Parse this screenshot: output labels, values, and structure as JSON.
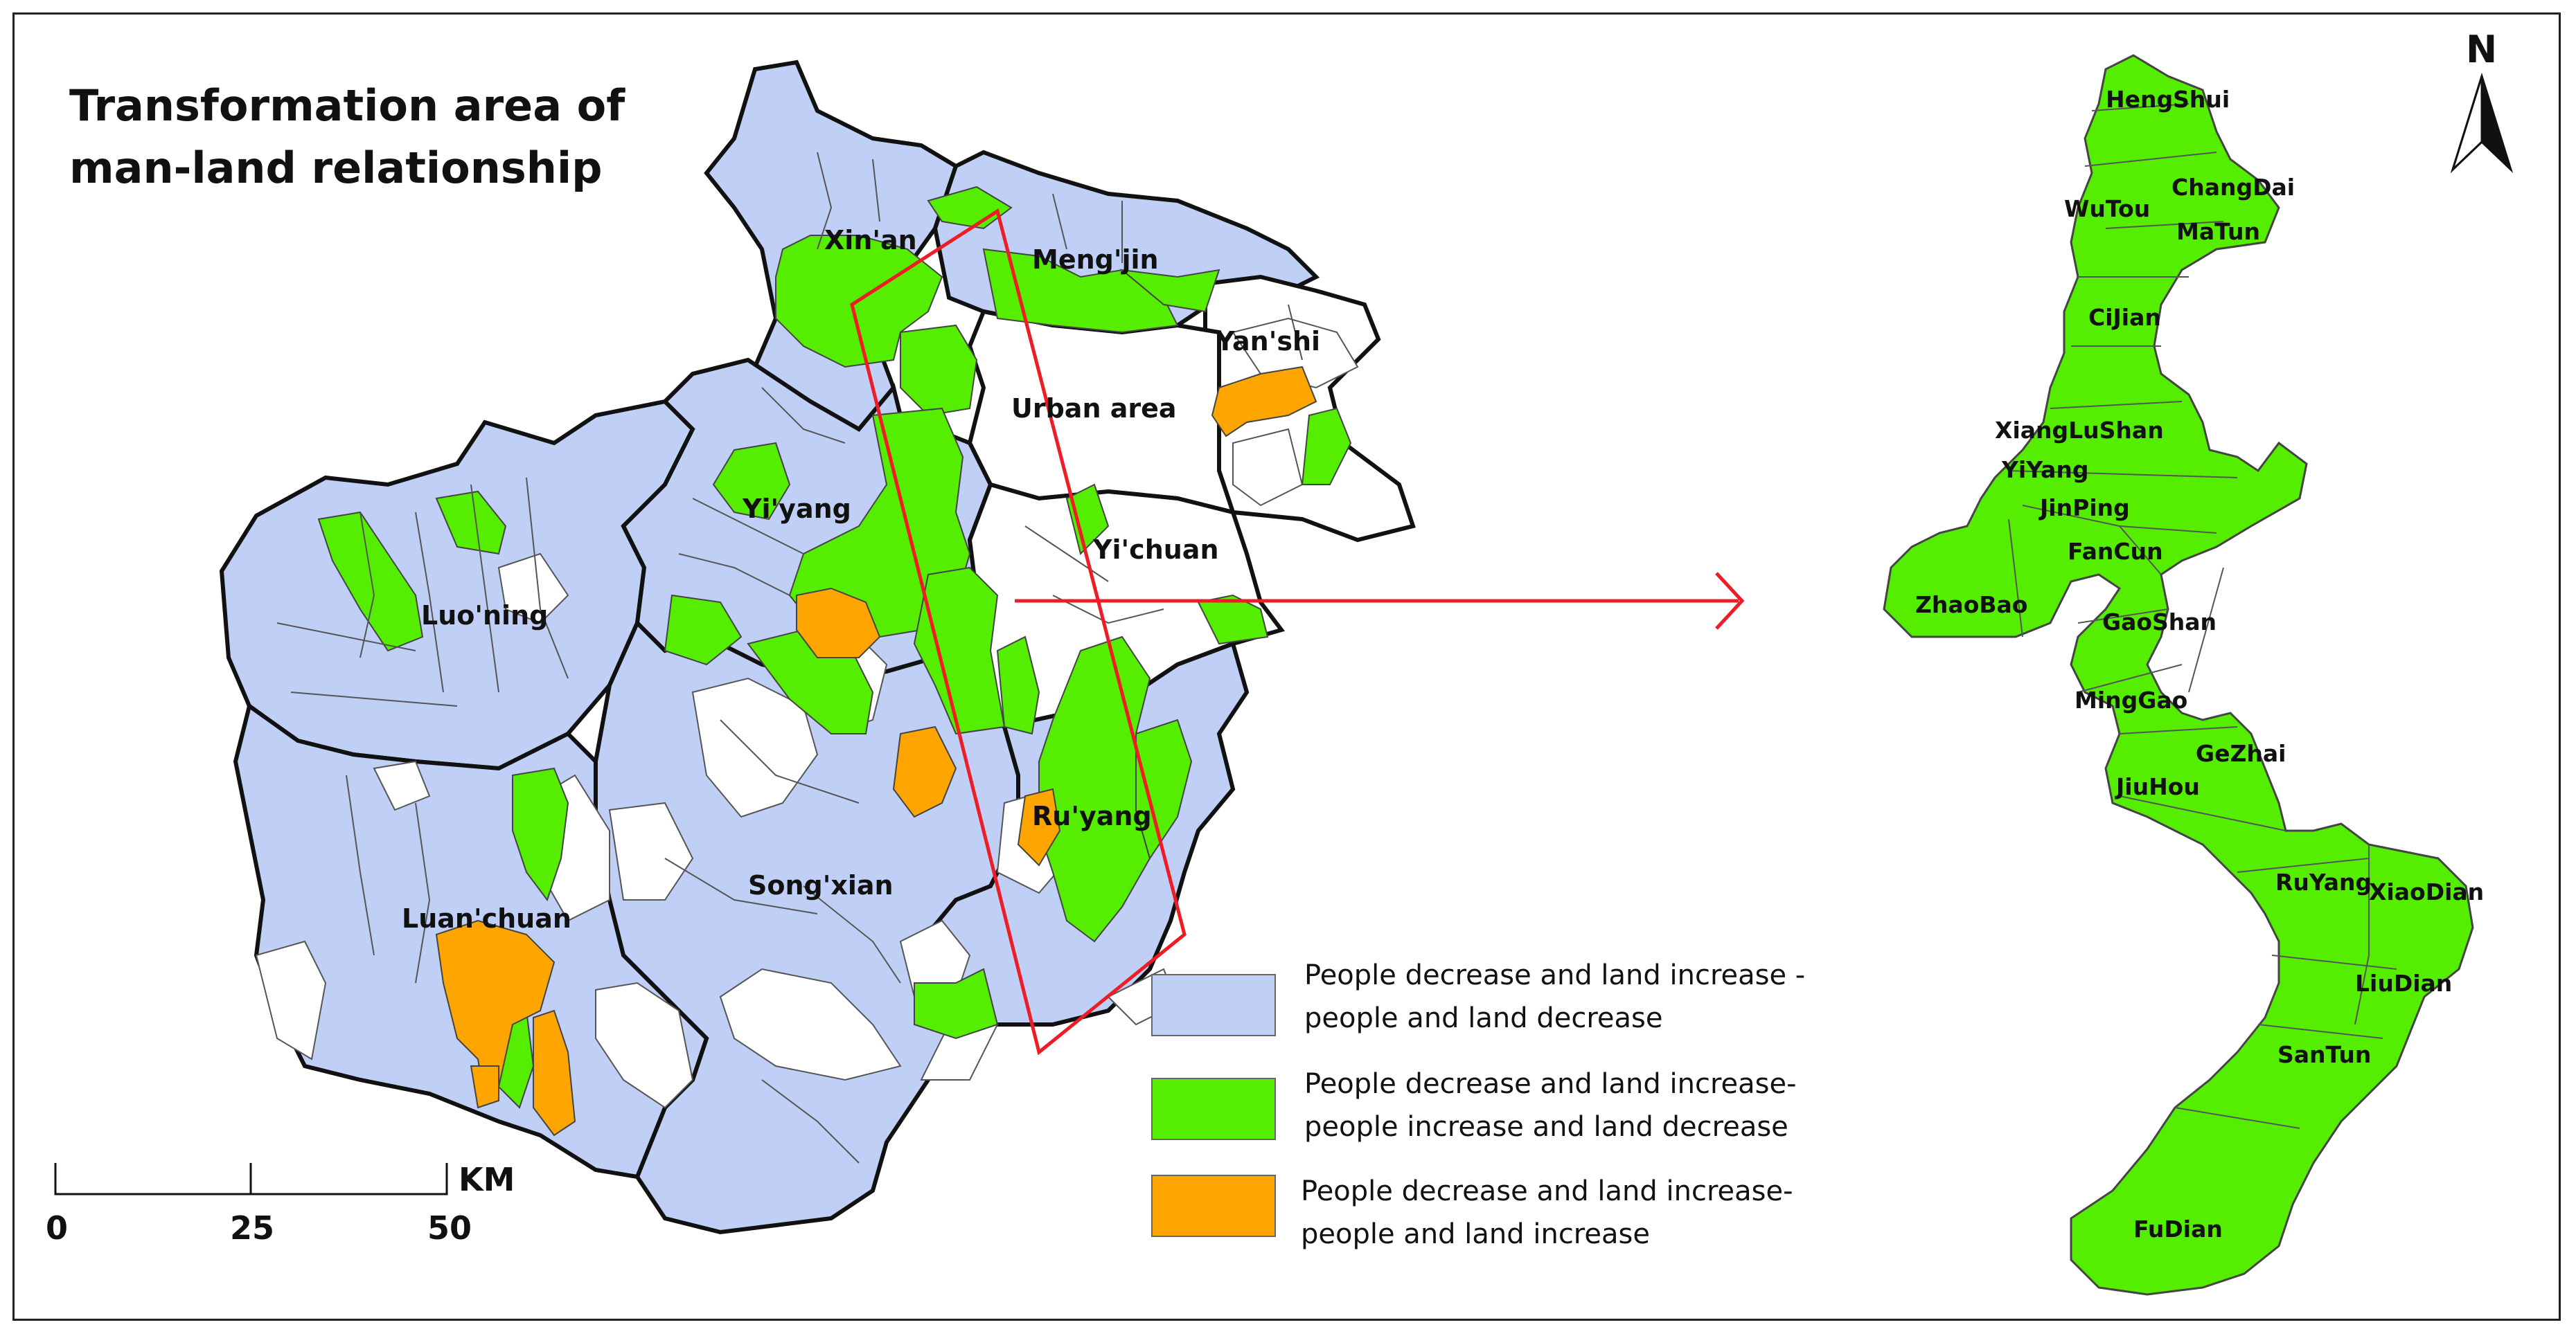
{
  "title": {
    "line1": "Transformation area of",
    "line2": "man-land relationship"
  },
  "colors": {
    "blue": "#c0cff5",
    "green": "#55ee00",
    "orange": "#ffa500",
    "white": "#ffffff",
    "red": "#ee1c25"
  },
  "counties": {
    "xinan": "Xin'an",
    "mengjin": "Meng'jin",
    "yanshi": "Yan'shi",
    "urban": "Urban area",
    "yiyang": "Yi'yang",
    "yichuan": "Yi'chuan",
    "luoning": "Luo'ning",
    "ruyang": "Ru'yang",
    "luanchuan": "Luan'chuan",
    "songxian": "Song'xian"
  },
  "towns": {
    "hengshui": "HengShui",
    "changdai": "ChangDai",
    "wutou": "WuTou",
    "matun": "MaTun",
    "cijian": "CiJian",
    "xianglushan": "XiangLuShan",
    "yiyang": "YiYang",
    "jinping": "JinPing",
    "fancun": "FanCun",
    "zhaobao": "ZhaoBao",
    "gaoshan": "GaoShan",
    "minggao": "MingGao",
    "gezhai": "GeZhai",
    "jiuhou": "JiuHou",
    "ruyang": "RuYang",
    "xiaodian": "XiaoDian",
    "liudian": "LiuDian",
    "santun": "SanTun",
    "fudian": "FuDian"
  },
  "north": "N",
  "scale": {
    "unit": "KM",
    "ticks": [
      "0",
      "25",
      "50"
    ]
  },
  "legend": [
    {
      "line1": "People decrease and land increase -",
      "line2": "people and land decrease",
      "color": "#c0cff5"
    },
    {
      "line1": "People decrease and land increase-",
      "line2": "people increase and land decrease",
      "color": "#55ee00"
    },
    {
      "line1": "People decrease and land increase-",
      "line2": "people and land increase",
      "color": "#ffa500"
    }
  ]
}
